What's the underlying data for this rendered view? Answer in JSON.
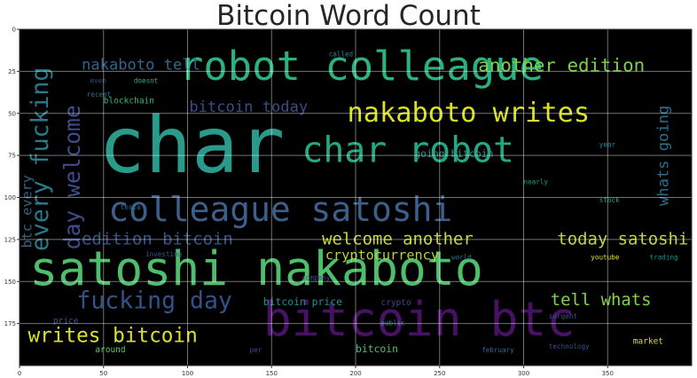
{
  "chart_data": {
    "type": "wordcloud",
    "title": "Bitcoin Word Count",
    "xlim": [
      0,
      400
    ],
    "ylim": [
      0,
      200
    ],
    "x_ticks": [
      0,
      50,
      100,
      150,
      200,
      250,
      300,
      350
    ],
    "y_ticks": [
      0,
      25,
      50,
      75,
      100,
      125,
      150,
      175
    ],
    "grid": true,
    "background": "#000000",
    "words": [
      {
        "text": "char",
        "x": 47,
        "y": 85,
        "size": 46,
        "color": "#2a9a8a"
      },
      {
        "text": "satoshi nakaboto",
        "x": 6,
        "y": 152,
        "size": 28,
        "color": "#4ebd6c"
      },
      {
        "text": "bitcoin btc",
        "x": 145,
        "y": 182,
        "size": 28,
        "color": "#471164"
      },
      {
        "text": "robot colleague",
        "x": 95,
        "y": 30,
        "size": 24,
        "color": "#2cb17e"
      },
      {
        "text": "char robot",
        "x": 168,
        "y": 79,
        "size": 21,
        "color": "#26a783"
      },
      {
        "text": "colleague satoshi",
        "x": 53,
        "y": 114,
        "size": 20,
        "color": "#3d5f8b"
      },
      {
        "text": "nakaboto writes",
        "x": 195,
        "y": 55,
        "size": 16,
        "color": "#dbe224"
      },
      {
        "text": "every fucking",
        "x": 17,
        "y": 132,
        "size": 14,
        "color": "#2a7a8c",
        "vertical": true
      },
      {
        "text": "day welcome",
        "x": 36,
        "y": 131,
        "size": 13,
        "color": "#3f4d8a",
        "vertical": true
      },
      {
        "text": "fucking day",
        "x": 34,
        "y": 166,
        "size": 14,
        "color": "#33528c"
      },
      {
        "text": "writes bitcoin",
        "x": 5,
        "y": 186,
        "size": 12,
        "color": "#dbe224"
      },
      {
        "text": "edition bitcoin",
        "x": 37,
        "y": 128,
        "size": 10,
        "color": "#35548c"
      },
      {
        "text": "welcome another",
        "x": 180,
        "y": 128,
        "size": 10,
        "color": "#c5d834"
      },
      {
        "text": "today satoshi",
        "x": 320,
        "y": 128,
        "size": 10,
        "color": "#b8d638"
      },
      {
        "text": "another edition",
        "x": 273,
        "y": 25,
        "size": 11,
        "color": "#7dcf4d"
      },
      {
        "text": "nakaboto tell",
        "x": 37,
        "y": 24,
        "size": 9,
        "color": "#32658d"
      },
      {
        "text": "bitcoin today",
        "x": 101,
        "y": 49,
        "size": 9,
        "color": "#3d4b89"
      },
      {
        "text": "whats going",
        "x": 386,
        "y": 105,
        "size": 9,
        "color": "#2b6e8e",
        "vertical": true
      },
      {
        "text": "tell whats",
        "x": 316,
        "y": 164,
        "size": 10,
        "color": "#82d24a"
      },
      {
        "text": "cryptocurrency",
        "x": 182,
        "y": 137,
        "size": 8,
        "color": "#b3d43b"
      },
      {
        "text": "btc every",
        "x": 7,
        "y": 130,
        "size": 8,
        "color": "#336488",
        "vertical": true
      },
      {
        "text": "going bitcoin",
        "x": 235,
        "y": 76,
        "size": 6,
        "color": "#2a9080"
      },
      {
        "text": "blockchain",
        "x": 50,
        "y": 44,
        "size": 5,
        "color": "#35b779"
      },
      {
        "text": "bitcoin price",
        "x": 145,
        "y": 164,
        "size": 6,
        "color": "#21908c"
      },
      {
        "text": "crypto",
        "x": 215,
        "y": 164,
        "size": 5,
        "color": "#404688"
      },
      {
        "text": "bitcoin",
        "x": 200,
        "y": 192,
        "size": 6,
        "color": "#4ac16d"
      },
      {
        "text": "market",
        "x": 365,
        "y": 187,
        "size": 5,
        "color": "#e4d12a"
      },
      {
        "text": "price",
        "x": 20,
        "y": 175,
        "size": 5,
        "color": "#3b528b"
      },
      {
        "text": "around",
        "x": 45,
        "y": 192,
        "size": 5,
        "color": "#5ec962"
      },
      {
        "text": "tesla",
        "x": 60,
        "y": 107,
        "size": 4,
        "color": "#31688e"
      },
      {
        "text": "stock",
        "x": 345,
        "y": 103,
        "size": 4,
        "color": "#1f9e89"
      },
      {
        "text": "year",
        "x": 345,
        "y": 70,
        "size": 4,
        "color": "#26828e"
      },
      {
        "text": "doesnt",
        "x": 68,
        "y": 32,
        "size": 4,
        "color": "#2db27d"
      },
      {
        "text": "even",
        "x": 42,
        "y": 32,
        "size": 4,
        "color": "#3e4a89"
      },
      {
        "text": "recent",
        "x": 40,
        "y": 40,
        "size": 4,
        "color": "#2c728e"
      },
      {
        "text": "called",
        "x": 184,
        "y": 16,
        "size": 4,
        "color": "#25858e"
      },
      {
        "text": "world",
        "x": 257,
        "y": 137,
        "size": 4,
        "color": "#2a788e"
      },
      {
        "text": "company",
        "x": 168,
        "y": 149,
        "size": 4,
        "color": "#3e4c8a"
      },
      {
        "text": "investing",
        "x": 75,
        "y": 135,
        "size": 4,
        "color": "#38598c"
      },
      {
        "text": "public",
        "x": 215,
        "y": 176,
        "size": 4,
        "color": "#2a788e"
      },
      {
        "text": "sargent",
        "x": 315,
        "y": 172,
        "size": 4,
        "color": "#3b528b"
      },
      {
        "text": "february",
        "x": 275,
        "y": 192,
        "size": 4,
        "color": "#31688e"
      },
      {
        "text": "technology",
        "x": 315,
        "y": 190,
        "size": 4,
        "color": "#3d4d8a"
      },
      {
        "text": "youtube",
        "x": 340,
        "y": 137,
        "size": 4,
        "color": "#dde318"
      },
      {
        "text": "trading",
        "x": 375,
        "y": 137,
        "size": 4,
        "color": "#21918c"
      },
      {
        "text": "per",
        "x": 137,
        "y": 192,
        "size": 4,
        "color": "#3e4a89"
      },
      {
        "text": "nearly",
        "x": 300,
        "y": 92,
        "size": 4,
        "color": "#1f9a8a"
      }
    ]
  }
}
